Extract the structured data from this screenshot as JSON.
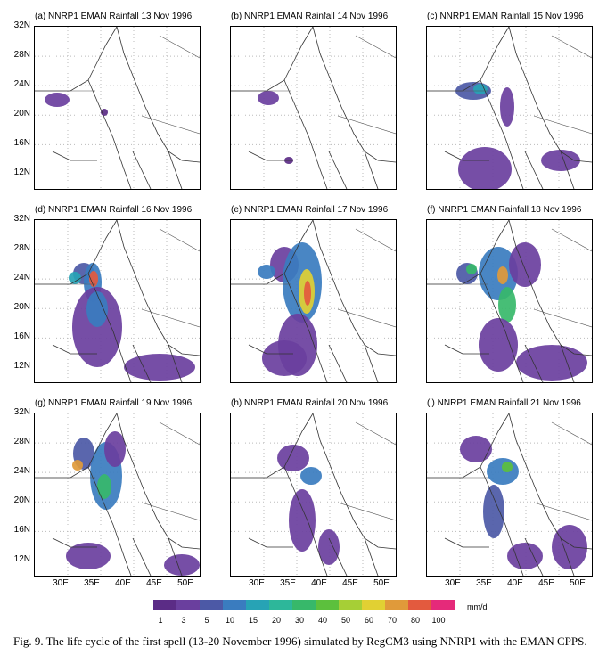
{
  "panels": [
    {
      "title": "(a) NNRP1 EMAN Rainfall 13 Nov 1996"
    },
    {
      "title": "(b) NNRP1 EMAN Rainfall 14 Nov 1996"
    },
    {
      "title": "(c) NNRP1 EMAN Rainfall 15 Nov 1996"
    },
    {
      "title": "(d) NNRP1 EMAN Rainfall 16 Nov 1996"
    },
    {
      "title": "(e) NNRP1 EMAN Rainfall 17 Nov 1996"
    },
    {
      "title": "(f) NNRP1 EMAN Rainfall 18 Nov 1996"
    },
    {
      "title": "(g) NNRP1 EMAN Rainfall 19 Nov 1996"
    },
    {
      "title": "(h) NNRP1 EMAN Rainfall 20 Nov 1996"
    },
    {
      "title": "(i) NNRP1 EMAN Rainfall 21 Nov 1996"
    }
  ],
  "lat_labels": [
    "32N",
    "28N",
    "24N",
    "20N",
    "16N",
    "12N"
  ],
  "lon_labels": [
    "30E",
    "35E",
    "40E",
    "45E",
    "50E"
  ],
  "colorbar": {
    "labels": [
      "1",
      "3",
      "5",
      "10",
      "15",
      "20",
      "30",
      "40",
      "50",
      "60",
      "70",
      "80",
      "100"
    ],
    "unit": "mm/d",
    "colors": [
      "#5b2c86",
      "#6a3f9e",
      "#4c59a6",
      "#3a7cbf",
      "#27a3b5",
      "#2db79a",
      "#37b86a",
      "#5cc03d",
      "#a6cf36",
      "#e1d033",
      "#e09a3a",
      "#e35a3e",
      "#e52a7a"
    ]
  },
  "caption": "Fig. 9. The life cycle of the first spell (13-20 November 1996) simulated by RegCM3 using NNRP1 with the EMAN CPPS."
}
